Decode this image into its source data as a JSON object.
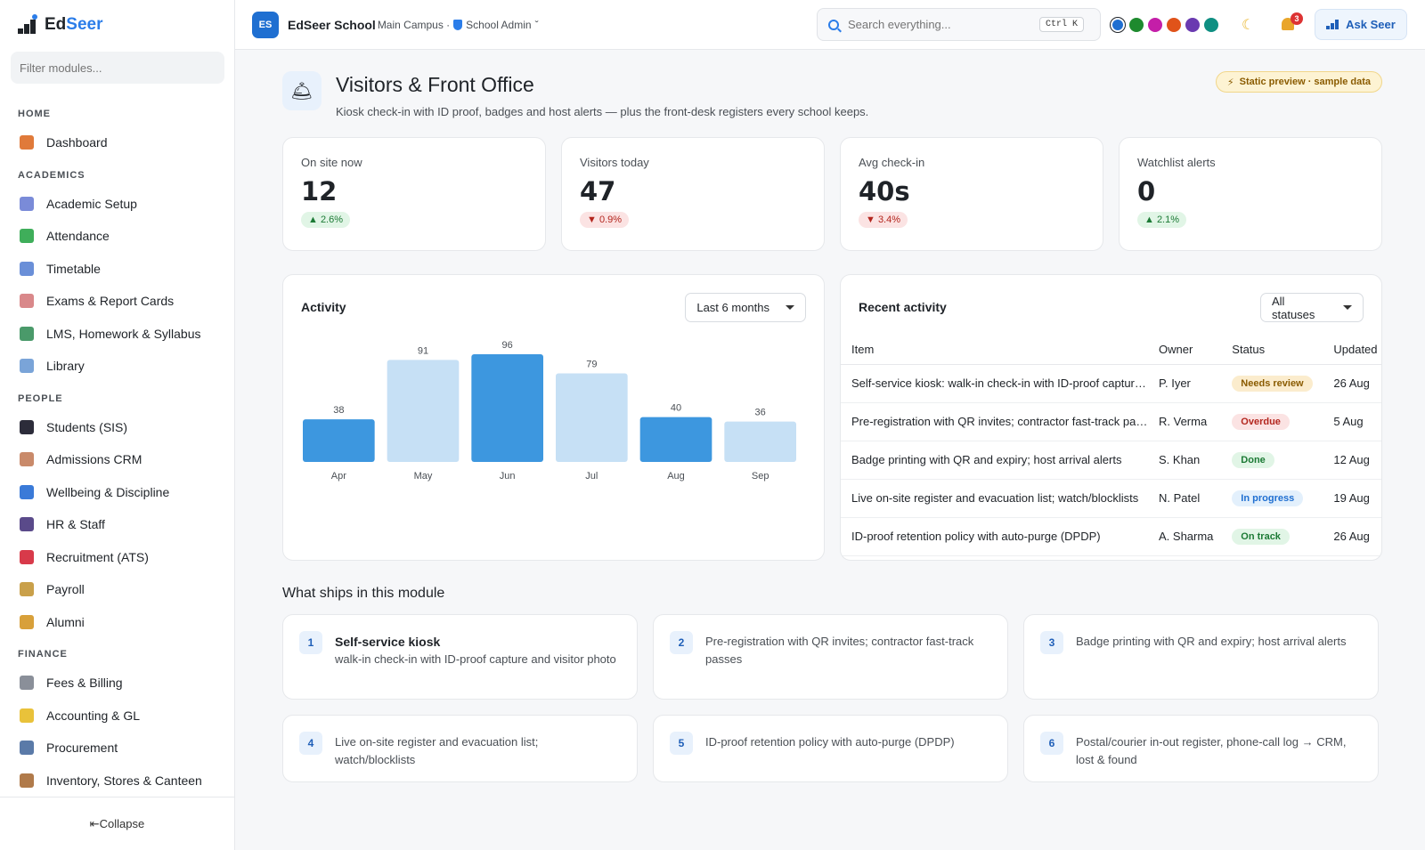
{
  "brand": {
    "name_a": "Ed",
    "name_b": "Seer"
  },
  "sidebar": {
    "filter_placeholder": "Filter modules...",
    "collapse_label": "⇤Collapse",
    "sections": [
      {
        "label": "HOME",
        "items": [
          {
            "label": "Dashboard",
            "icon": "house-icon",
            "color": "#e07a3a"
          }
        ]
      },
      {
        "label": "ACADEMICS",
        "items": [
          {
            "label": "Academic Setup",
            "icon": "calendar-icon",
            "color": "#7a8bd8"
          },
          {
            "label": "Attendance",
            "icon": "check-box-icon",
            "color": "#3fae5a"
          },
          {
            "label": "Timetable",
            "icon": "grid-calendar-icon",
            "color": "#6a8fd8"
          },
          {
            "label": "Exams & Report Cards",
            "icon": "memo-icon",
            "color": "#d9888a"
          },
          {
            "label": "LMS, Homework & Syllabus",
            "icon": "books-icon",
            "color": "#4a9a6a"
          },
          {
            "label": "Library",
            "icon": "open-book-icon",
            "color": "#7aa4d8"
          }
        ]
      },
      {
        "label": "PEOPLE",
        "items": [
          {
            "label": "Students (SIS)",
            "icon": "graduation-cap-icon",
            "color": "#2c2c3a"
          },
          {
            "label": "Admissions CRM",
            "icon": "clipboard-icon",
            "color": "#c98a6a"
          },
          {
            "label": "Wellbeing & Discipline",
            "icon": "heart-icon",
            "color": "#3a7ad8"
          },
          {
            "label": "HR & Staff",
            "icon": "people-icon",
            "color": "#5a4a8a"
          },
          {
            "label": "Recruitment (ATS)",
            "icon": "magnet-icon",
            "color": "#d83a4a"
          },
          {
            "label": "Payroll",
            "icon": "money-bag-icon",
            "color": "#c9a04a"
          },
          {
            "label": "Alumni",
            "icon": "medal-icon",
            "color": "#d8a03a"
          }
        ]
      },
      {
        "label": "FINANCE",
        "items": [
          {
            "label": "Fees & Billing",
            "icon": "receipt-icon",
            "color": "#8a8f99"
          },
          {
            "label": "Accounting & GL",
            "icon": "ledger-icon",
            "color": "#e9c23a"
          },
          {
            "label": "Procurement",
            "icon": "cart-icon",
            "color": "#5a7aa8"
          },
          {
            "label": "Inventory, Stores & Canteen",
            "icon": "package-icon",
            "color": "#b07a4a"
          }
        ]
      }
    ]
  },
  "topbar": {
    "logo_initials": "ES",
    "school_name": "EdSeer School",
    "campus": "Main Campus ·",
    "role": "School Admin",
    "role_caret": "ˇ",
    "search_placeholder": "Search everything...",
    "search_shortcut": "Ctrl K",
    "theme_colors": [
      "#1f6fd1",
      "#1e8a2e",
      "#c41ea8",
      "#e0531a",
      "#6a3ab0",
      "#0f8f82"
    ],
    "notifications_count": "3",
    "ask_label": "Ask Seer"
  },
  "page": {
    "icon": "bell-front-desk-icon",
    "title": "Visitors & Front Office",
    "subtitle": "Kiosk check-in with ID proof, badges and host alerts — plus the front-desk registers every school keeps.",
    "preview_badge": "Static preview · sample data"
  },
  "kpis": [
    {
      "label": "On site now",
      "value": "12",
      "delta": "▲ 2.6%",
      "trend": "up"
    },
    {
      "label": "Visitors today",
      "value": "47",
      "delta": "▼ 0.9%",
      "trend": "down"
    },
    {
      "label": "Avg check-in",
      "value": "40s",
      "delta": "▼ 3.4%",
      "trend": "down"
    },
    {
      "label": "Watchlist alerts",
      "value": "0",
      "delta": "▲ 2.1%",
      "trend": "up"
    }
  ],
  "activity": {
    "title": "Activity",
    "range_label": "Last 6 months"
  },
  "chart_data": {
    "type": "bar",
    "categories": [
      "Apr",
      "May",
      "Jun",
      "Jul",
      "Aug",
      "Sep"
    ],
    "values": [
      38,
      91,
      96,
      79,
      40,
      36
    ],
    "highlight": [
      true,
      false,
      true,
      false,
      true,
      false
    ],
    "colors": {
      "dark": "#3d97df",
      "light": "#c6e0f5"
    },
    "title": "",
    "xlabel": "",
    "ylabel": ""
  },
  "recent": {
    "title": "Recent activity",
    "filter_label": "All statuses",
    "columns": [
      "Item",
      "Owner",
      "Status",
      "Updated"
    ],
    "rows": [
      {
        "item": "Self-service kiosk: walk-in check-in with ID-proof capture and visitor photo",
        "owner": "P. Iyer",
        "status": "Needs review",
        "updated": "26 Aug",
        "bg": "#fbeccd",
        "fg": "#8a5b00"
      },
      {
        "item": "Pre-registration with QR invites; contractor fast-track passes",
        "owner": "R. Verma",
        "status": "Overdue",
        "updated": "5 Aug",
        "bg": "#fbe3e3",
        "fg": "#b3261e"
      },
      {
        "item": "Badge printing with QR and expiry; host arrival alerts",
        "owner": "S. Khan",
        "status": "Done",
        "updated": "12 Aug",
        "bg": "#e1f5e6",
        "fg": "#1c7a35"
      },
      {
        "item": "Live on-site register and evacuation list; watch/blocklists",
        "owner": "N. Patel",
        "status": "In progress",
        "updated": "19 Aug",
        "bg": "#e3f0fc",
        "fg": "#1f6fd1"
      },
      {
        "item": "ID-proof retention policy with auto-purge (DPDP)",
        "owner": "A. Sharma",
        "status": "On track",
        "updated": "26 Aug",
        "bg": "#e1f5e6",
        "fg": "#1c7a35"
      }
    ]
  },
  "ships": {
    "title": "What ships in this module",
    "items": [
      {
        "num": "1",
        "strong": "Self-service kiosk",
        "text": "walk-in check-in with ID-proof capture and visitor photo"
      },
      {
        "num": "2",
        "strong": "",
        "text": "Pre-registration with QR invites; contractor fast-track passes"
      },
      {
        "num": "3",
        "strong": "",
        "text": "Badge printing with QR and expiry; host arrival alerts"
      },
      {
        "num": "4",
        "strong": "",
        "text": "Live on-site register and evacuation list; watch/blocklists"
      },
      {
        "num": "5",
        "strong": "",
        "text": "ID-proof retention policy with auto-purge (DPDP)"
      },
      {
        "num": "6",
        "strong": "",
        "text": "Postal/courier in-out register, phone-call log → CRM, lost & found"
      }
    ]
  }
}
